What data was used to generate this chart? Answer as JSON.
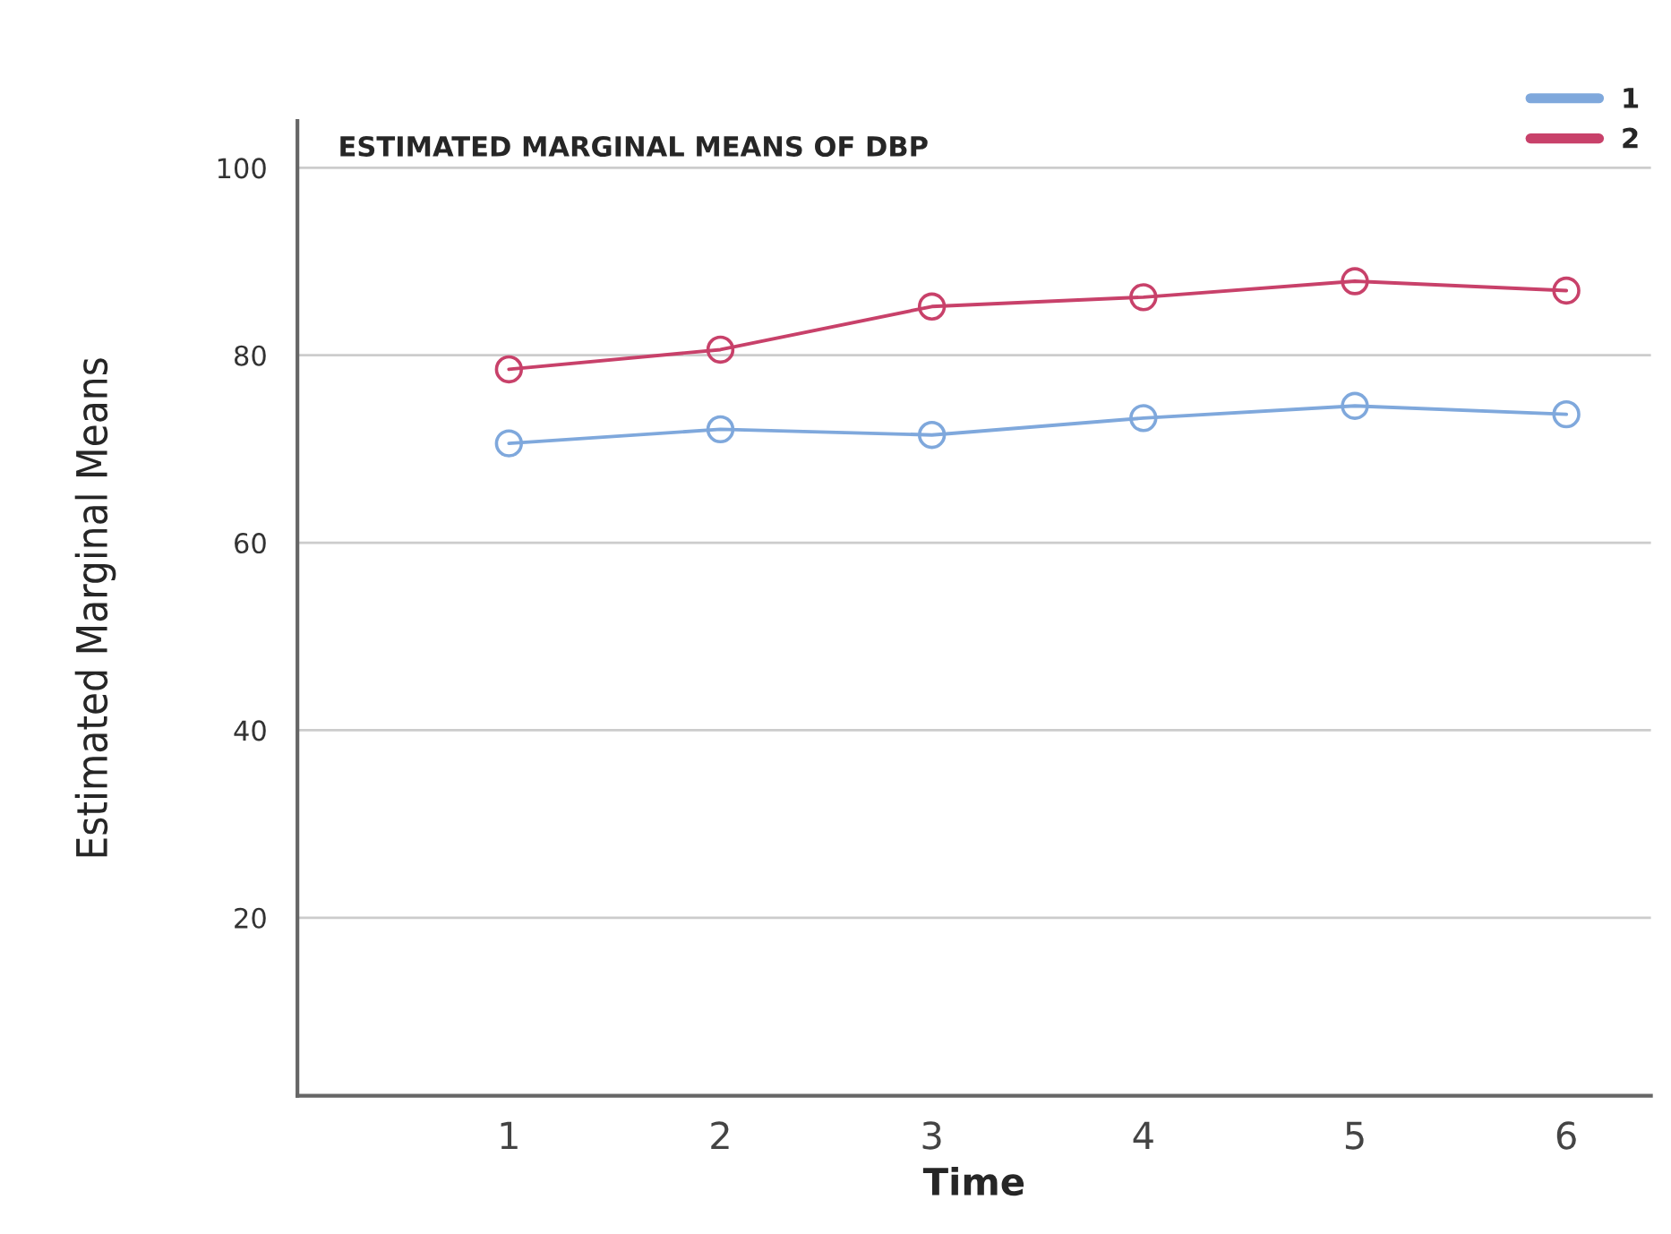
{
  "chart_data": {
    "type": "line",
    "title": "ESTIMATED MARGINAL MEANS OF DBP",
    "xlabel": "Time",
    "ylabel": "Estimated Marginal Means",
    "x": [
      1,
      2,
      3,
      4,
      5,
      6
    ],
    "series": [
      {
        "name": "1",
        "color": "#7fa8dc",
        "values": [
          70.6,
          72.1,
          71.5,
          73.3,
          74.6,
          73.7
        ]
      },
      {
        "name": "2",
        "color": "#c8416a",
        "values": [
          78.5,
          80.6,
          85.2,
          86.2,
          87.9,
          86.9
        ]
      }
    ],
    "xlim": [
      0,
      6.4
    ],
    "xticks": [
      1,
      2,
      3,
      4,
      5,
      6
    ],
    "ylim": [
      1,
      105
    ],
    "yticks": [
      20,
      40,
      60,
      80,
      100
    ],
    "grid": "y",
    "legend": "top right",
    "marker": "circle",
    "line_style": "solid"
  }
}
